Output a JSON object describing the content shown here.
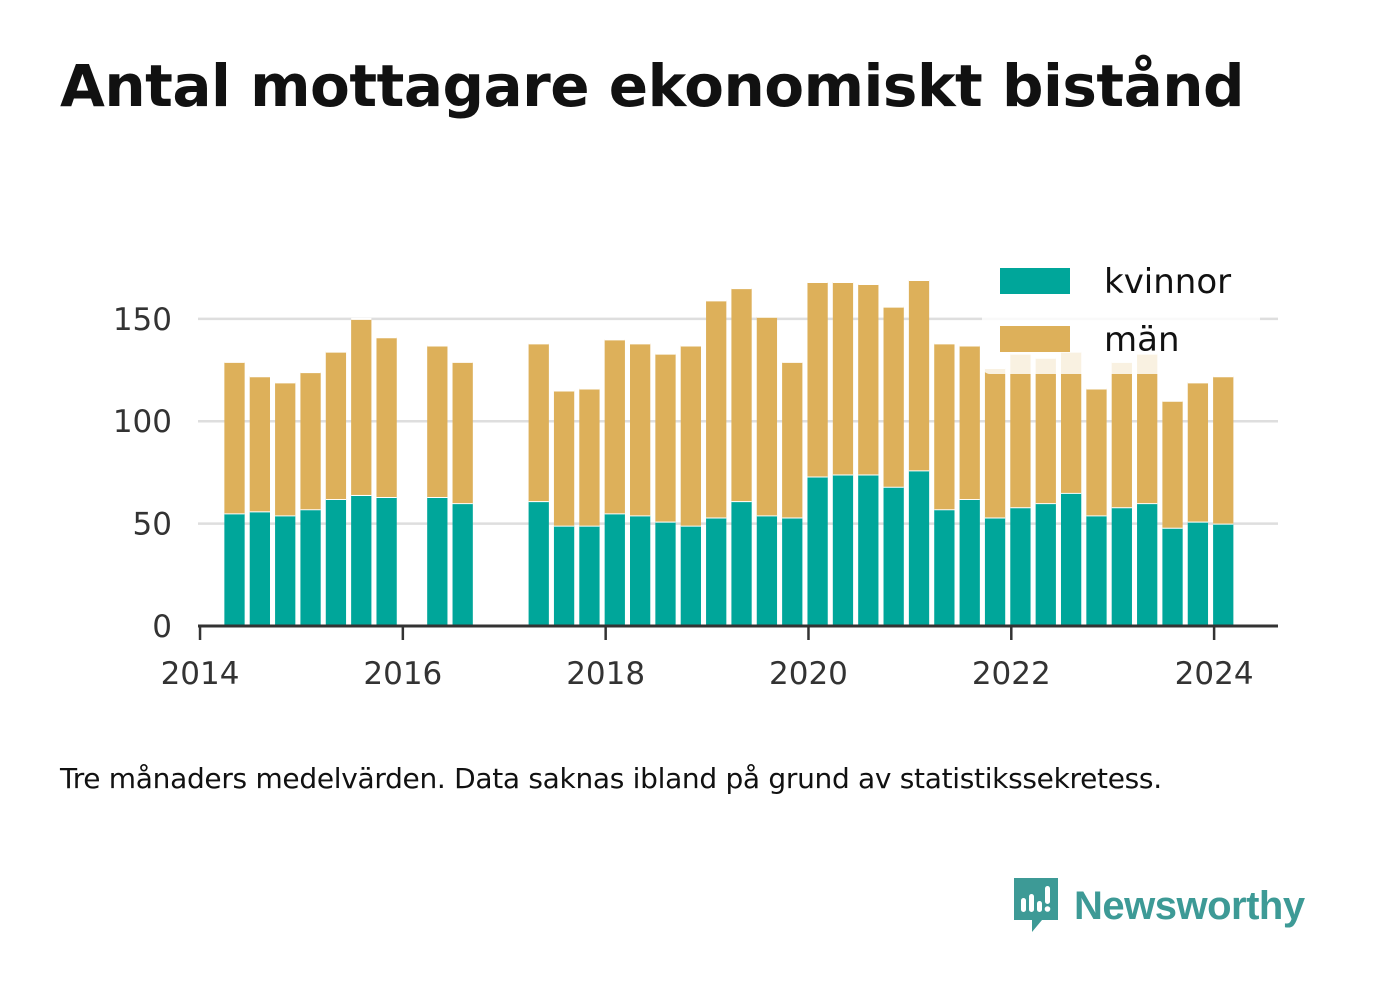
{
  "title": "Antal mottagare ekonomiskt bistånd",
  "note": "Tre månaders medelvärden. Data saknas ibland på grund av statistikssekretess.",
  "brand": {
    "name": "Newsworthy",
    "icon": "newsworthy-logo-icon",
    "color": "#3d9a96"
  },
  "chart_data": {
    "type": "bar",
    "stacked": true,
    "x_unit": "year",
    "xlim": [
      2013.98,
      2024.63
    ],
    "ylim": [
      0,
      168
    ],
    "yticks": [
      0,
      50,
      100,
      150
    ],
    "xticks": [
      2014,
      2016,
      2018,
      2020,
      2022,
      2024
    ],
    "grid": true,
    "legend_position": "top-right",
    "bar_width_years": 0.2,
    "x": [
      2014.34,
      2014.59,
      2014.84,
      2015.09,
      2015.34,
      2015.59,
      2015.84,
      2016.34,
      2016.59,
      2017.34,
      2017.59,
      2017.84,
      2018.09,
      2018.34,
      2018.59,
      2018.84,
      2019.09,
      2019.34,
      2019.59,
      2019.84,
      2020.09,
      2020.34,
      2020.59,
      2020.84,
      2021.09,
      2021.34,
      2021.59,
      2021.84,
      2022.09,
      2022.34,
      2022.59,
      2022.84,
      2023.09,
      2023.34,
      2023.59,
      2023.84,
      2024.09
    ],
    "series": [
      {
        "name": "kvinnor",
        "color": "#00a69a",
        "values": [
          55,
          56,
          54,
          57,
          62,
          64,
          63,
          63,
          60,
          61,
          49,
          49,
          55,
          54,
          51,
          49,
          53,
          61,
          54,
          53,
          73,
          74,
          74,
          68,
          76,
          57,
          62,
          53,
          58,
          60,
          65,
          54,
          58,
          60,
          48,
          51,
          50
        ]
      },
      {
        "name": "män",
        "color": "#ddb05a",
        "values": [
          74,
          66,
          65,
          67,
          72,
          86,
          78,
          74,
          69,
          77,
          66,
          67,
          85,
          84,
          82,
          88,
          106,
          104,
          97,
          76,
          95,
          94,
          93,
          88,
          93,
          81,
          75,
          73,
          75,
          71,
          69,
          62,
          71,
          73,
          62,
          68,
          72
        ]
      }
    ]
  }
}
